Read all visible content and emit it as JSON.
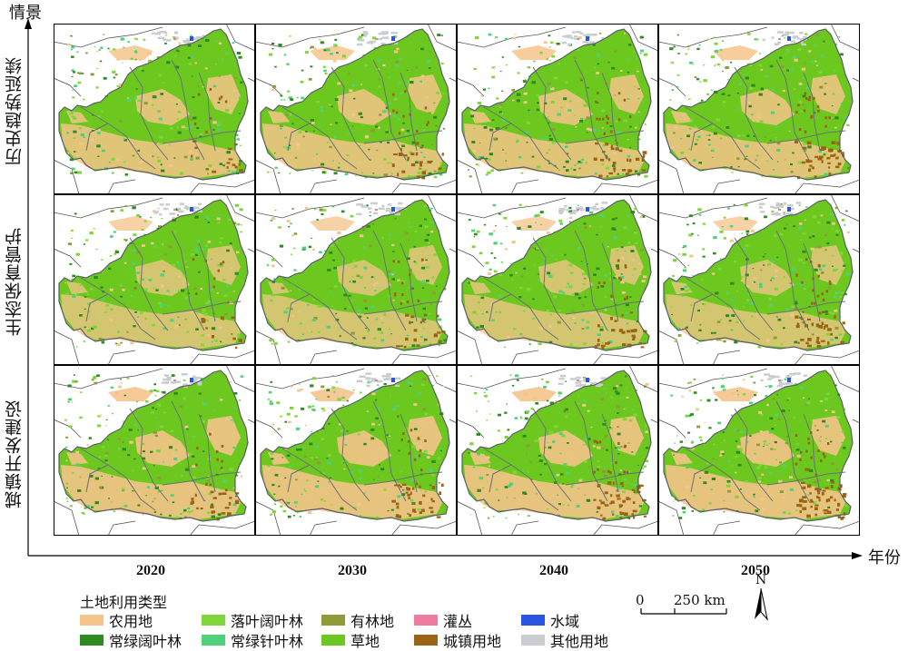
{
  "axis": {
    "y_title": "情景",
    "x_title": "年份"
  },
  "scenarios": [
    {
      "label": "历史趋势延续"
    },
    {
      "label": "生态保育管护"
    },
    {
      "label": "城镇开发建设"
    }
  ],
  "years": [
    "2020",
    "2030",
    "2040",
    "2050"
  ],
  "legend": {
    "title": "土地利用类型",
    "items": [
      {
        "label": "农用地",
        "color": "#F5C48A"
      },
      {
        "label": "落叶阔叶林",
        "color": "#7FD63A"
      },
      {
        "label": "有林地",
        "color": "#8F9A3A"
      },
      {
        "label": "灌丛",
        "color": "#F07BA0"
      },
      {
        "label": "水域",
        "color": "#2A55E0"
      },
      {
        "label": "常绿阔叶林",
        "color": "#2E8B22"
      },
      {
        "label": "常绿针叶林",
        "color": "#4FD07A"
      },
      {
        "label": "草地",
        "color": "#6CC81E"
      },
      {
        "label": "城镇用地",
        "color": "#9A6414"
      },
      {
        "label": "其他用地",
        "color": "#C9CDD0"
      }
    ]
  },
  "scalebar": {
    "start": "0",
    "end_label": "250 km"
  },
  "north_arrow": {
    "label": "N",
    "icon": "north-arrow-icon"
  }
}
